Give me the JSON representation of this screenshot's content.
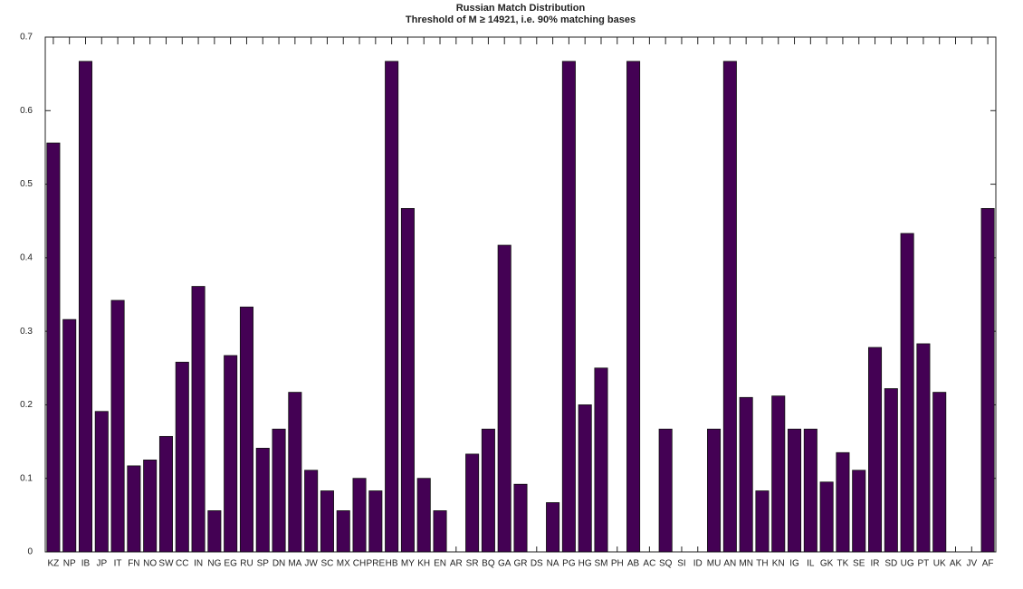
{
  "chart_data": {
    "type": "bar",
    "title": "Russian Match Distribution",
    "subtitle": "Threshold of M ≥ 14921, i.e. 90% matching bases",
    "categories": [
      "KZ",
      "NP",
      "IB",
      "JP",
      "IT",
      "FN",
      "NO",
      "SW",
      "CC",
      "IN",
      "NG",
      "EG",
      "RU",
      "SP",
      "DN",
      "MA",
      "JW",
      "SC",
      "MX",
      "CH",
      "PRE",
      "HB",
      "MY",
      "KH",
      "EN",
      "AR",
      "SR",
      "BQ",
      "GA",
      "GR",
      "DS",
      "NA",
      "PG",
      "HG",
      "SM",
      "PH",
      "AB",
      "AC",
      "SQ",
      "SI",
      "ID",
      "MU",
      "AN",
      "MN",
      "TH",
      "KN",
      "IG",
      "IL",
      "GK",
      "TK",
      "SE",
      "IR",
      "SD",
      "UG",
      "PT",
      "UK",
      "AK",
      "JV",
      "AF"
    ],
    "values": [
      0.556,
      0.316,
      0.667,
      0.191,
      0.342,
      0.117,
      0.125,
      0.157,
      0.258,
      0.361,
      0.056,
      0.267,
      0.333,
      0.141,
      0.167,
      0.217,
      0.111,
      0.083,
      0.056,
      0.1,
      0.083,
      0.667,
      0.467,
      0.1,
      0.056,
      0,
      0.133,
      0.167,
      0.417,
      0.092,
      0,
      0.067,
      0.667,
      0.2,
      0.25,
      0,
      0.667,
      0,
      0.167,
      0,
      0,
      0.167,
      0.667,
      0.21,
      0.083,
      0.212,
      0.167,
      0.167,
      0.095,
      0.135,
      0.111,
      0.278,
      0.222,
      0.433,
      0.283,
      0.217,
      0,
      0,
      0.467
    ],
    "color": "#440154",
    "ylim": [
      0,
      0.7
    ],
    "yticks": [
      0,
      0.1,
      0.2,
      0.3,
      0.4,
      0.5,
      0.6,
      0.7
    ],
    "grid": false
  }
}
